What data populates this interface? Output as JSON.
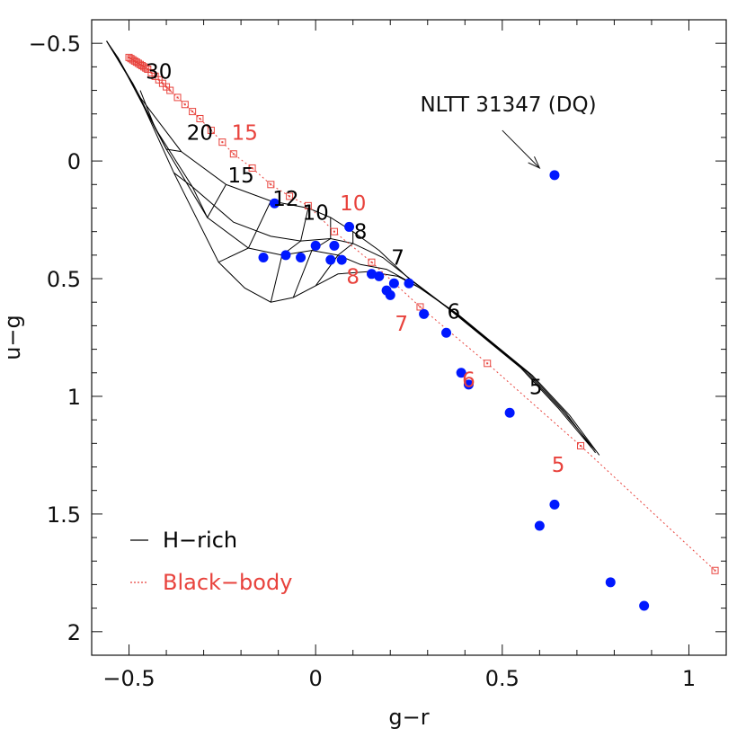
{
  "chart_data": {
    "type": "scatter",
    "title": "",
    "xlabel": "g−r",
    "ylabel": "u−g",
    "xlim": [
      -0.6,
      1.1
    ],
    "ylim": [
      2.1,
      -0.6
    ],
    "y_inverted": true,
    "grid": false,
    "legend_placement": "bottom-left",
    "x_ticks": [
      {
        "value": -0.5,
        "label": "−0.5"
      },
      {
        "value": 0,
        "label": "0"
      },
      {
        "value": 0.5,
        "label": "0.5"
      },
      {
        "value": 1,
        "label": "1"
      }
    ],
    "y_ticks": [
      {
        "value": -0.5,
        "label": "−0.5"
      },
      {
        "value": 0,
        "label": "0"
      },
      {
        "value": 0.5,
        "label": "0.5"
      },
      {
        "value": 1,
        "label": "1"
      },
      {
        "value": 1.5,
        "label": "1.5"
      },
      {
        "value": 2,
        "label": "2"
      }
    ],
    "colors": {
      "h_rich": "#000000",
      "black_body": "#e8423c",
      "observed": "#0018ff"
    },
    "legend": [
      {
        "label": "H−rich",
        "style": "solid",
        "color": "#000000"
      },
      {
        "label": "Black−body",
        "style": "dotted",
        "color": "#e8423c"
      }
    ],
    "h_rich_tracks": [
      [
        [
          -0.56,
          -0.51
        ],
        [
          -0.53,
          -0.44
        ],
        [
          -0.47,
          -0.27
        ],
        [
          -0.36,
          -0.04
        ],
        [
          -0.24,
          0.1
        ],
        [
          -0.12,
          0.17
        ],
        [
          -0.02,
          0.2
        ],
        [
          0.04,
          0.24
        ],
        [
          0.1,
          0.3
        ],
        [
          0.17,
          0.38
        ],
        [
          0.25,
          0.5
        ],
        [
          0.35,
          0.62
        ],
        [
          0.45,
          0.75
        ],
        [
          0.55,
          0.88
        ],
        [
          0.65,
          1.05
        ],
        [
          0.74,
          1.22
        ]
      ],
      [
        [
          -0.56,
          -0.51
        ],
        [
          -0.51,
          -0.38
        ],
        [
          -0.43,
          -0.14
        ],
        [
          -0.33,
          0.11
        ],
        [
          -0.22,
          0.26
        ],
        [
          -0.12,
          0.32
        ],
        [
          -0.04,
          0.34
        ],
        [
          0.04,
          0.33
        ],
        [
          0.1,
          0.35
        ],
        [
          0.18,
          0.41
        ],
        [
          0.26,
          0.51
        ],
        [
          0.36,
          0.63
        ],
        [
          0.46,
          0.76
        ],
        [
          0.56,
          0.89
        ],
        [
          0.66,
          1.06
        ],
        [
          0.75,
          1.23
        ]
      ],
      [
        [
          -0.56,
          -0.51
        ],
        [
          -0.49,
          -0.33
        ],
        [
          -0.4,
          -0.05
        ],
        [
          -0.29,
          0.24
        ],
        [
          -0.18,
          0.37
        ],
        [
          -0.09,
          0.4
        ],
        [
          -0.01,
          0.38
        ],
        [
          0.06,
          0.4
        ],
        [
          0.12,
          0.44
        ],
        [
          0.19,
          0.46
        ],
        [
          0.27,
          0.53
        ],
        [
          0.37,
          0.64
        ],
        [
          0.47,
          0.77
        ],
        [
          0.57,
          0.9
        ],
        [
          0.67,
          1.07
        ],
        [
          0.75,
          1.24
        ]
      ],
      [
        [
          -0.56,
          -0.51
        ],
        [
          -0.48,
          -0.3
        ],
        [
          -0.38,
          0.05
        ],
        [
          -0.26,
          0.43
        ],
        [
          -0.19,
          0.54
        ],
        [
          -0.12,
          0.6
        ],
        [
          -0.06,
          0.58
        ],
        [
          0.0,
          0.53
        ],
        [
          0.06,
          0.48
        ],
        [
          0.14,
          0.47
        ],
        [
          0.22,
          0.49
        ],
        [
          0.28,
          0.54
        ],
        [
          0.38,
          0.65
        ],
        [
          0.48,
          0.78
        ],
        [
          0.58,
          0.91
        ],
        [
          0.68,
          1.08
        ],
        [
          0.76,
          1.25
        ]
      ]
    ],
    "h_rich_isotherms": [
      [
        [
          -0.47,
          -0.27
        ],
        [
          -0.49,
          -0.33
        ],
        [
          -0.51,
          -0.38
        ],
        [
          -0.53,
          -0.44
        ]
      ],
      [
        [
          -0.36,
          -0.04
        ],
        [
          -0.4,
          -0.05
        ],
        [
          -0.43,
          -0.14
        ],
        [
          -0.47,
          -0.3
        ]
      ],
      [
        [
          -0.24,
          0.1
        ],
        [
          -0.29,
          0.24
        ],
        [
          -0.33,
          0.11
        ],
        [
          -0.38,
          0.05
        ]
      ],
      [
        [
          -0.12,
          0.17
        ],
        [
          -0.18,
          0.37
        ],
        [
          -0.26,
          0.43
        ]
      ],
      [
        [
          -0.02,
          0.2
        ],
        [
          -0.04,
          0.34
        ],
        [
          -0.09,
          0.4
        ],
        [
          -0.12,
          0.6
        ]
      ],
      [
        [
          0.04,
          0.24
        ],
        [
          0.04,
          0.33
        ],
        [
          -0.01,
          0.38
        ],
        [
          -0.06,
          0.58
        ]
      ],
      [
        [
          0.1,
          0.3
        ],
        [
          0.1,
          0.35
        ],
        [
          0.06,
          0.4
        ],
        [
          0.0,
          0.53
        ]
      ]
    ],
    "h_rich_labels": [
      {
        "text": "30",
        "x": -0.42,
        "y": -0.38
      },
      {
        "text": "20",
        "x": -0.31,
        "y": -0.12
      },
      {
        "text": "15",
        "x": -0.2,
        "y": 0.06
      },
      {
        "text": "12",
        "x": -0.08,
        "y": 0.16
      },
      {
        "text": "10",
        "x": 0.0,
        "y": 0.22
      },
      {
        "text": "8",
        "x": 0.12,
        "y": 0.3
      },
      {
        "text": "7",
        "x": 0.22,
        "y": 0.41
      },
      {
        "text": "6",
        "x": 0.37,
        "y": 0.64
      },
      {
        "text": "5",
        "x": 0.59,
        "y": 0.96
      }
    ],
    "black_body": {
      "x": [
        -0.5,
        -0.495,
        -0.49,
        -0.485,
        -0.48,
        -0.475,
        -0.47,
        -0.465,
        -0.46,
        -0.455,
        -0.45,
        -0.44,
        -0.43,
        -0.42,
        -0.41,
        -0.4,
        -0.39,
        -0.37,
        -0.35,
        -0.33,
        -0.31,
        -0.28,
        -0.25,
        -0.22,
        -0.17,
        -0.12,
        -0.07,
        -0.02,
        0.05,
        0.15,
        0.28,
        0.46,
        0.71,
        1.07
      ],
      "y": [
        -0.44,
        -0.435,
        -0.43,
        -0.425,
        -0.42,
        -0.415,
        -0.41,
        -0.405,
        -0.4,
        -0.395,
        -0.39,
        -0.375,
        -0.36,
        -0.345,
        -0.33,
        -0.315,
        -0.3,
        -0.27,
        -0.24,
        -0.21,
        -0.18,
        -0.13,
        -0.08,
        -0.03,
        0.03,
        0.1,
        0.15,
        0.19,
        0.3,
        0.43,
        0.62,
        0.86,
        1.21,
        1.74
      ]
    },
    "black_body_labels": [
      {
        "text": "15",
        "x": -0.19,
        "y": -0.12
      },
      {
        "text": "10",
        "x": 0.1,
        "y": 0.18
      },
      {
        "text": "8",
        "x": 0.1,
        "y": 0.49
      },
      {
        "text": "7",
        "x": 0.23,
        "y": 0.69
      },
      {
        "text": "6",
        "x": 0.41,
        "y": 0.93
      },
      {
        "text": "5",
        "x": 0.65,
        "y": 1.29
      }
    ],
    "observed": {
      "x": [
        0.64,
        -0.11,
        -0.14,
        -0.08,
        -0.04,
        0.0,
        0.04,
        0.05,
        0.07,
        0.09,
        0.15,
        0.17,
        0.19,
        0.2,
        0.21,
        0.25,
        0.29,
        0.35,
        0.39,
        0.41,
        0.52,
        0.6,
        0.64,
        0.79,
        0.88
      ],
      "y": [
        0.06,
        0.18,
        0.41,
        0.4,
        0.41,
        0.36,
        0.42,
        0.36,
        0.42,
        0.28,
        0.48,
        0.49,
        0.55,
        0.57,
        0.52,
        0.52,
        0.65,
        0.73,
        0.9,
        0.95,
        1.07,
        1.55,
        1.46,
        1.79,
        1.89
      ]
    },
    "annotation": {
      "text": "NLTT 31347 (DQ)",
      "text_x": 0.28,
      "text_y": -0.21,
      "arrow_from": [
        0.5,
        -0.13
      ],
      "arrow_to": [
        0.6,
        0.03
      ]
    }
  }
}
